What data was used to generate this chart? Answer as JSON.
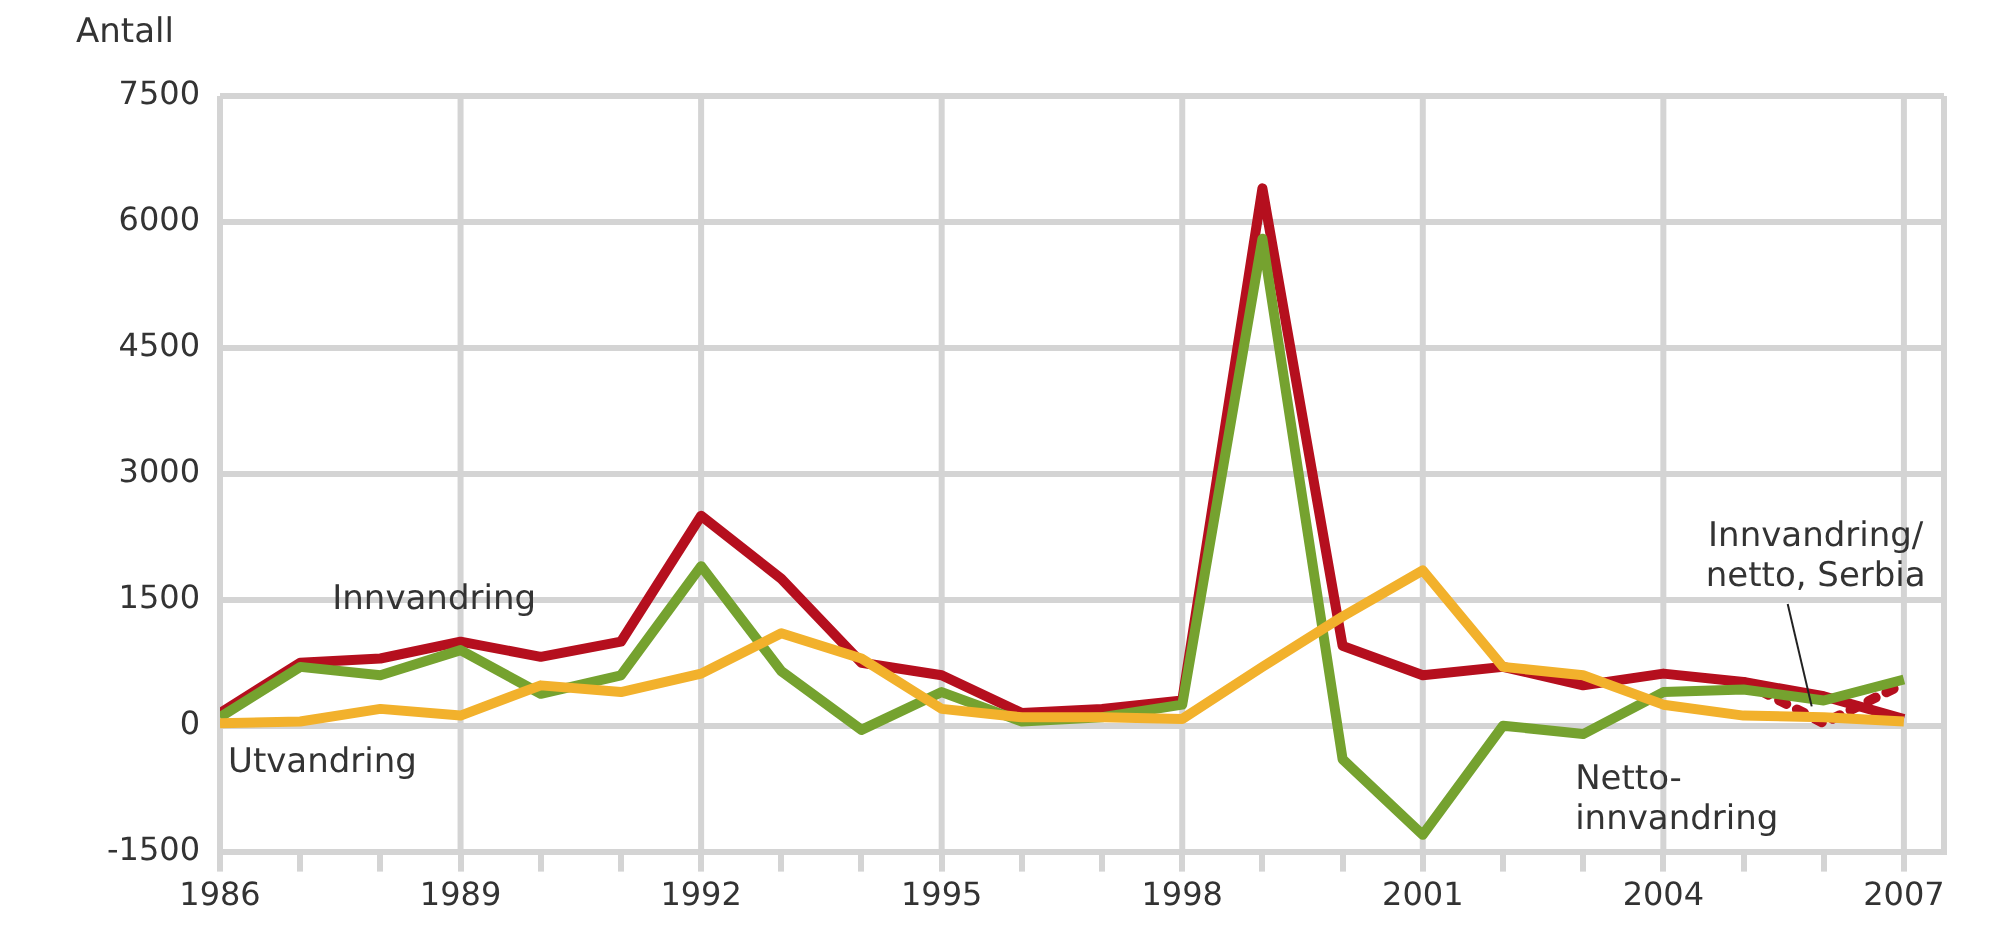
{
  "chart_data": {
    "type": "line",
    "ylabel": "Antall",
    "xlim": [
      1986,
      2007.5
    ],
    "xticks": [
      1986,
      {
        "value": 1987,
        "label": null
      },
      {
        "value": 1988,
        "label": null
      },
      1989,
      {
        "value": 1990,
        "label": null
      },
      {
        "value": 1991,
        "label": null
      },
      1992,
      {
        "value": 1993,
        "label": null
      },
      {
        "value": 1994,
        "label": null
      },
      1995,
      {
        "value": 1996,
        "label": null
      },
      {
        "value": 1997,
        "label": null
      },
      1998,
      {
        "value": 1999,
        "label": null
      },
      {
        "value": 2000,
        "label": null
      },
      2001,
      {
        "value": 2002,
        "label": null
      },
      {
        "value": 2003,
        "label": null
      },
      2004,
      {
        "value": 2005,
        "label": null
      },
      {
        "value": 2006,
        "label": null
      },
      2007
    ],
    "ylim": [
      -1500,
      7500
    ],
    "yticks": [
      -1500,
      0,
      1500,
      3000,
      4500,
      6000,
      7500
    ],
    "grid": true,
    "legend": false,
    "marker": "none",
    "x": [
      1986,
      1987,
      1988,
      1989,
      1990,
      1991,
      1992,
      1993,
      1994,
      1995,
      1996,
      1997,
      1998,
      1999,
      2000,
      2001,
      2002,
      2003,
      2004,
      2005,
      2006,
      2007
    ],
    "series": [
      {
        "name": "Utvandring",
        "color": "#f2b12c",
        "values": [
          30,
          50,
          200,
          120,
          480,
          400,
          620,
          1100,
          800,
          200,
          100,
          100,
          80,
          700,
          1300,
          1850,
          700,
          600,
          250,
          120,
          100,
          50
        ]
      },
      {
        "name": "Netto-innvandring",
        "color": "#75a22f",
        "values": [
          100,
          700,
          600,
          900,
          380,
          600,
          1900,
          650,
          -50,
          400,
          50,
          100,
          250,
          5800,
          -400,
          -1300,
          0,
          -100,
          400,
          430,
          300,
          550
        ]
      },
      {
        "name": "Innvandring",
        "color": "#b50f1e",
        "values": [
          150,
          750,
          800,
          1000,
          820,
          1000,
          2500,
          1750,
          750,
          600,
          150,
          200,
          300,
          6400,
          950,
          600,
          700,
          480,
          620,
          520,
          350,
          80
        ]
      },
      {
        "name": "Innvandring/netto, Serbia",
        "color": "#b50f1e",
        "line_style": "dotted",
        "x": [
          2005,
          2006,
          2007
        ],
        "values": [
          520,
          30,
          500
        ]
      }
    ]
  }
}
